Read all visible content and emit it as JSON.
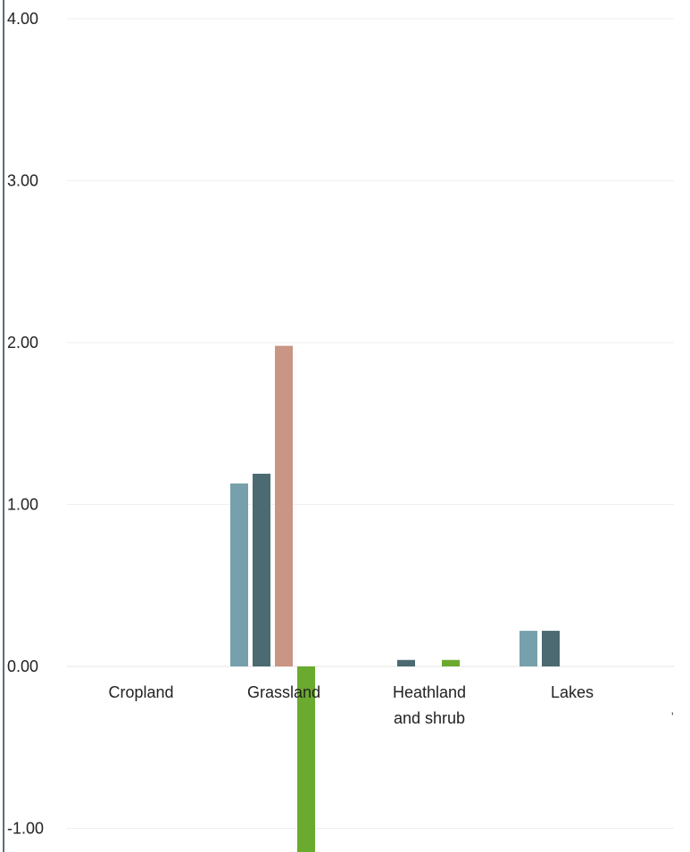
{
  "chart_data": {
    "type": "bar",
    "categories": [
      "Cropland",
      "Grassland",
      "Heathland and shrub",
      "Lakes"
    ],
    "category_label_lines": [
      [
        "Cropland"
      ],
      [
        "Grassland"
      ],
      [
        "Heathland",
        "and shrub"
      ],
      [
        "Lakes"
      ]
    ],
    "series": [
      {
        "color": "#76a0ab",
        "values": [
          0,
          1.13,
          0,
          0.22
        ]
      },
      {
        "color": "#4b6a72",
        "values": [
          0,
          1.19,
          0.04,
          0.22
        ]
      },
      {
        "color": "#c99584",
        "values": [
          0,
          1.98,
          0,
          0
        ]
      },
      {
        "color": "#6aaa2e",
        "values": [
          0,
          -1.15,
          0.04,
          0
        ]
      }
    ],
    "y_ticks": [
      "4.00",
      "3.00",
      "2.00",
      "1.00",
      "0.00",
      "-1.00"
    ],
    "y_tick_values": [
      4,
      3,
      2,
      1,
      0,
      -1
    ],
    "ylim": [
      -1.15,
      4.15
    ],
    "grid": true,
    "legend": "none",
    "title": "",
    "xlabel": "",
    "ylabel": ""
  }
}
